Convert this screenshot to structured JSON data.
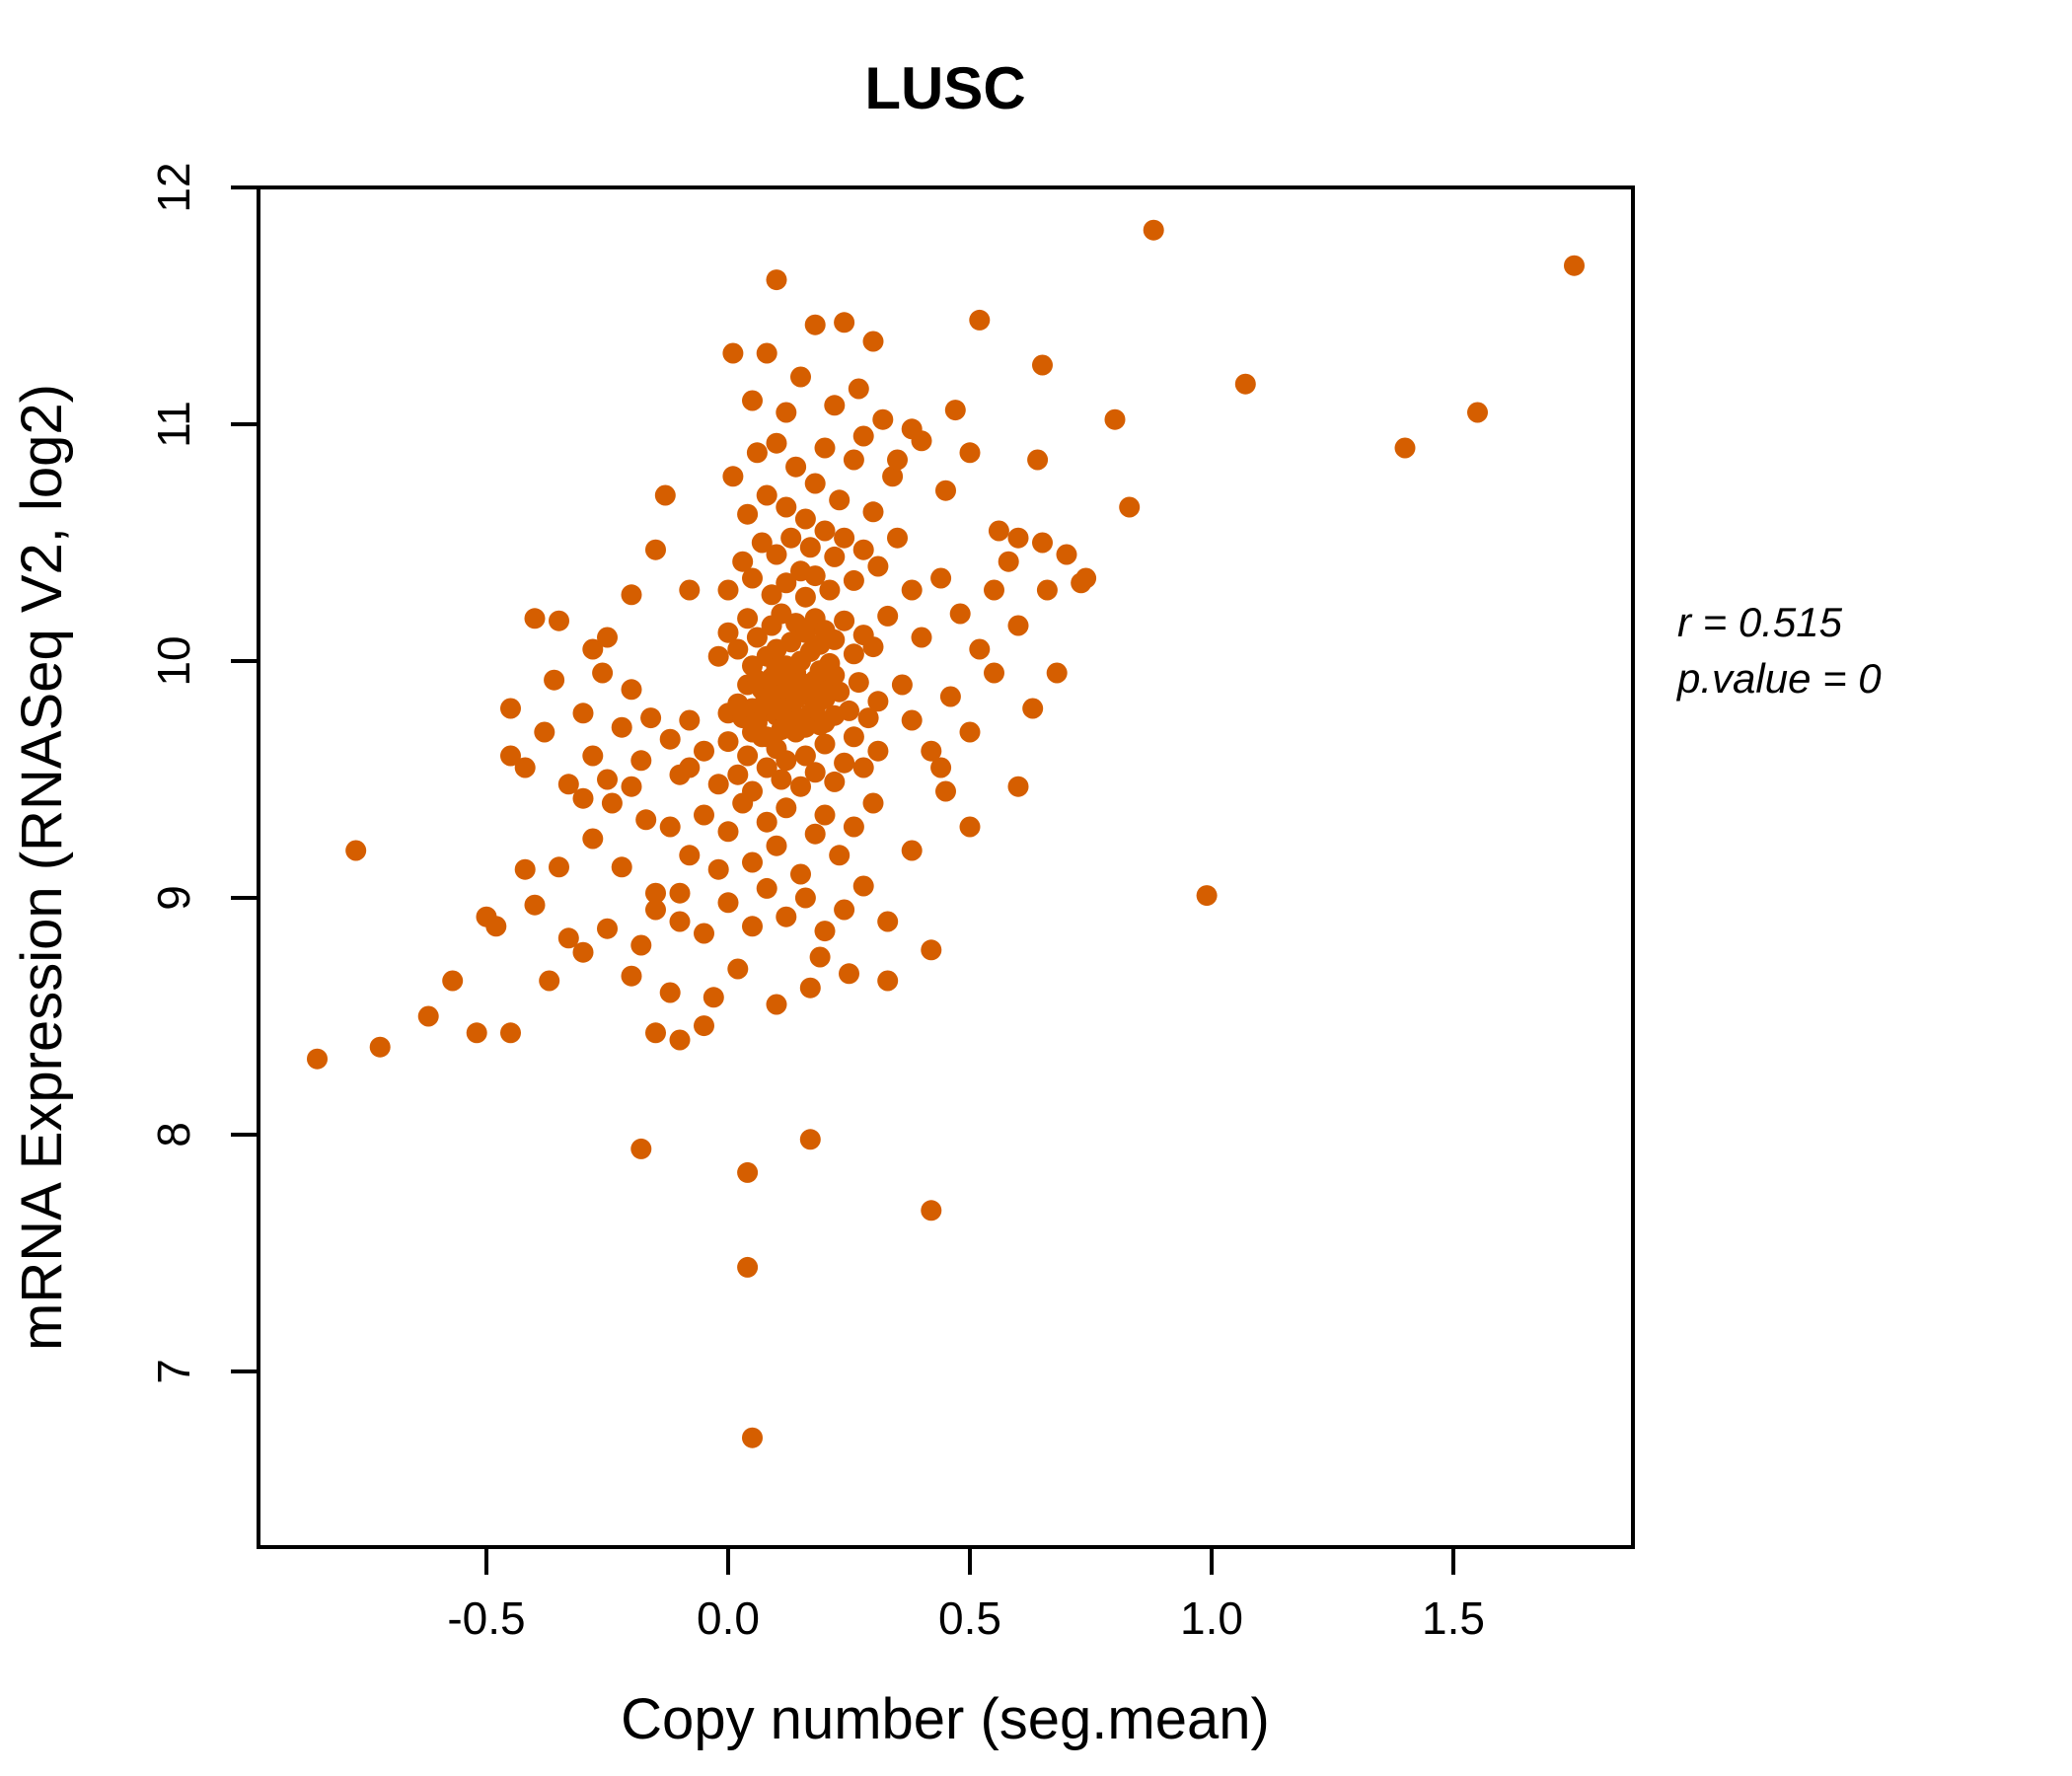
{
  "colors": {
    "accent": "#D55E00",
    "point": "#D55E00",
    "axis": "#000000"
  },
  "annotation": {
    "line1": "r = 0.515",
    "line2": "p.value = 0"
  },
  "chart_data": {
    "type": "scatter",
    "title": "LUSC",
    "xlabel": "Copy number (seg.mean)",
    "ylabel": "mRNA Expression (RNASeq V2, log2)",
    "xlim": [
      -0.97,
      1.87
    ],
    "ylim": [
      6.25,
      12
    ],
    "grid": false,
    "legend_position": "none",
    "x_ticks": [
      -0.5,
      0.0,
      0.5,
      1.0,
      1.5
    ],
    "x_tick_labels": [
      "-0.5",
      "0.0",
      "0.5",
      "1.0",
      "1.5"
    ],
    "y_ticks": [
      7,
      8,
      9,
      10,
      11,
      12
    ],
    "y_tick_labels": [
      "7",
      "8",
      "9",
      "10",
      "11",
      "12"
    ],
    "annotations": [
      "r = 0.515",
      "p.value = 0"
    ],
    "points": [
      [
        0.88,
        11.82
      ],
      [
        1.75,
        11.67
      ],
      [
        1.55,
        11.05
      ],
      [
        1.4,
        10.9
      ],
      [
        1.07,
        11.17
      ],
      [
        0.99,
        9.01
      ],
      [
        0.05,
        6.72
      ],
      [
        0.04,
        7.44
      ],
      [
        0.42,
        7.68
      ],
      [
        0.04,
        7.84
      ],
      [
        -0.18,
        7.94
      ],
      [
        0.17,
        7.98
      ],
      [
        -0.85,
        8.32
      ],
      [
        -0.72,
        8.37
      ],
      [
        -0.77,
        9.2
      ],
      [
        -0.62,
        8.5
      ],
      [
        -0.57,
        8.65
      ],
      [
        -0.45,
        8.43
      ],
      [
        -0.52,
        8.43
      ],
      [
        -0.37,
        8.65
      ],
      [
        -0.3,
        8.77
      ],
      [
        0.83,
        10.65
      ],
      [
        0.8,
        11.02
      ],
      [
        0.65,
        11.25
      ],
      [
        0.52,
        11.44
      ],
      [
        0.1,
        11.61
      ],
      [
        0.24,
        11.43
      ],
      [
        0.01,
        11.3
      ],
      [
        0.73,
        10.33
      ],
      [
        0.64,
        10.85
      ],
      [
        0.6,
        9.47
      ],
      [
        0.56,
        10.55
      ],
      [
        -0.45,
        9.6
      ],
      [
        -0.5,
        8.92
      ],
      [
        -0.48,
        8.88
      ],
      [
        -0.42,
        9.12
      ],
      [
        -0.4,
        8.97
      ],
      [
        -0.35,
        9.13
      ],
      [
        -0.33,
        8.83
      ],
      [
        -0.35,
        10.17
      ],
      [
        -0.28,
        10.05
      ],
      [
        -0.15,
        8.43
      ],
      [
        -0.1,
        8.4
      ],
      [
        -0.05,
        8.46
      ],
      [
        0.33,
        8.65
      ],
      [
        0.42,
        8.78
      ],
      [
        0.3,
        11.35
      ],
      [
        -0.45,
        9.8
      ],
      [
        -0.42,
        9.55
      ],
      [
        -0.4,
        10.18
      ],
      [
        -0.38,
        9.7
      ],
      [
        -0.36,
        9.92
      ],
      [
        -0.33,
        9.48
      ],
      [
        -0.3,
        9.78
      ],
      [
        -0.28,
        9.6
      ],
      [
        -0.26,
        9.95
      ],
      [
        -0.24,
        9.4
      ],
      [
        -0.22,
        9.72
      ],
      [
        -0.2,
        9.88
      ],
      [
        -0.18,
        9.58
      ],
      [
        -0.16,
        9.76
      ],
      [
        -0.25,
        10.1
      ],
      [
        -0.2,
        10.28
      ],
      [
        -0.3,
        9.42
      ],
      [
        -0.28,
        9.25
      ],
      [
        -0.25,
        9.5
      ],
      [
        -0.25,
        8.87
      ],
      [
        -0.22,
        9.13
      ],
      [
        -0.2,
        8.67
      ],
      [
        -0.2,
        9.47
      ],
      [
        -0.18,
        8.8
      ],
      [
        -0.17,
        9.33
      ],
      [
        -0.15,
        9.02
      ],
      [
        -0.15,
        10.47
      ],
      [
        -0.13,
        10.7
      ],
      [
        -0.12,
        9.67
      ],
      [
        -0.1,
        9.52
      ],
      [
        -0.1,
        8.9
      ],
      [
        -0.08,
        9.75
      ],
      [
        -0.08,
        10.3
      ],
      [
        0,
        9.78
      ],
      [
        0.02,
        9.82
      ],
      [
        0.03,
        9.76
      ],
      [
        0.04,
        9.9
      ],
      [
        0.05,
        9.8
      ],
      [
        0.06,
        9.74
      ],
      [
        0.07,
        9.88
      ],
      [
        0.08,
        9.79
      ],
      [
        0.09,
        9.93
      ],
      [
        0.1,
        9.77
      ],
      [
        0.1,
        9.85
      ],
      [
        0.11,
        9.71
      ],
      [
        0.12,
        9.9
      ],
      [
        0.13,
        9.8
      ],
      [
        0.14,
        9.95
      ],
      [
        0.15,
        9.75
      ],
      [
        0.16,
        9.86
      ],
      [
        0.17,
        9.78
      ],
      [
        0.18,
        9.92
      ],
      [
        0.19,
        9.73
      ],
      [
        0.2,
        9.84
      ],
      [
        0.21,
        9.95
      ],
      [
        0.22,
        9.77
      ],
      [
        0.23,
        9.87
      ],
      [
        0.25,
        9.79
      ],
      [
        0.27,
        9.91
      ],
      [
        0.29,
        9.76
      ],
      [
        0.31,
        9.83
      ],
      [
        -0.02,
        10.02
      ],
      [
        0,
        10.12
      ],
      [
        0.02,
        10.05
      ],
      [
        0.04,
        10.18
      ],
      [
        0.05,
        9.98
      ],
      [
        0.06,
        10.1
      ],
      [
        0.08,
        10.02
      ],
      [
        0.09,
        10.15
      ],
      [
        0.1,
        10.05
      ],
      [
        0.11,
        10.2
      ],
      [
        0.12,
        9.98
      ],
      [
        0.13,
        10.08
      ],
      [
        0.14,
        10.16
      ],
      [
        0.15,
        10
      ],
      [
        0.16,
        10.12
      ],
      [
        0.17,
        10.04
      ],
      [
        0.18,
        10.18
      ],
      [
        0.19,
        10.07
      ],
      [
        0.2,
        10.13
      ],
      [
        0.21,
        9.99
      ],
      [
        0.22,
        10.09
      ],
      [
        0.24,
        10.17
      ],
      [
        0.26,
        10.03
      ],
      [
        0.28,
        10.11
      ],
      [
        0.3,
        10.06
      ],
      [
        0.33,
        10.19
      ],
      [
        0,
        10.3
      ],
      [
        0.03,
        10.42
      ],
      [
        0.05,
        10.35
      ],
      [
        0.07,
        10.5
      ],
      [
        0.09,
        10.28
      ],
      [
        0.1,
        10.45
      ],
      [
        0.12,
        10.33
      ],
      [
        0.13,
        10.52
      ],
      [
        0.15,
        10.38
      ],
      [
        0.16,
        10.27
      ],
      [
        0.17,
        10.48
      ],
      [
        0.18,
        10.36
      ],
      [
        0.2,
        10.55
      ],
      [
        0.21,
        10.3
      ],
      [
        0.22,
        10.44
      ],
      [
        0.24,
        10.52
      ],
      [
        0.26,
        10.34
      ],
      [
        0.28,
        10.47
      ],
      [
        0.31,
        10.4
      ],
      [
        0.35,
        10.52
      ],
      [
        0.38,
        10.3
      ],
      [
        0.01,
        10.78
      ],
      [
        0.04,
        10.62
      ],
      [
        0.06,
        10.88
      ],
      [
        0.08,
        10.7
      ],
      [
        0.1,
        10.92
      ],
      [
        0.12,
        10.65
      ],
      [
        0.14,
        10.82
      ],
      [
        0.16,
        10.6
      ],
      [
        0.18,
        10.75
      ],
      [
        0.2,
        10.9
      ],
      [
        0.23,
        10.68
      ],
      [
        0.26,
        10.85
      ],
      [
        0.3,
        10.63
      ],
      [
        0.34,
        10.78
      ],
      [
        0.4,
        10.93
      ],
      [
        0.45,
        10.72
      ],
      [
        0.5,
        10.88
      ],
      [
        0.05,
        11.1
      ],
      [
        0.08,
        11.3
      ],
      [
        0.12,
        11.05
      ],
      [
        0.15,
        11.2
      ],
      [
        0.18,
        11.42
      ],
      [
        0.22,
        11.08
      ],
      [
        0.27,
        11.15
      ],
      [
        0.32,
        11.02
      ],
      [
        0.38,
        10.98
      ],
      [
        0.47,
        11.06
      ],
      [
        0.35,
        10.85
      ],
      [
        0.28,
        10.95
      ],
      [
        -0.08,
        9.55
      ],
      [
        -0.05,
        9.62
      ],
      [
        -0.02,
        9.48
      ],
      [
        0,
        9.66
      ],
      [
        0.02,
        9.52
      ],
      [
        0.04,
        9.6
      ],
      [
        0.05,
        9.45
      ],
      [
        0.07,
        9.68
      ],
      [
        0.08,
        9.55
      ],
      [
        0.1,
        9.63
      ],
      [
        0.11,
        9.5
      ],
      [
        0.12,
        9.58
      ],
      [
        0.14,
        9.7
      ],
      [
        0.15,
        9.47
      ],
      [
        0.16,
        9.6
      ],
      [
        0.18,
        9.53
      ],
      [
        0.2,
        9.65
      ],
      [
        0.22,
        9.49
      ],
      [
        0.24,
        9.57
      ],
      [
        0.26,
        9.68
      ],
      [
        0.28,
        9.55
      ],
      [
        0.31,
        9.62
      ],
      [
        -0.12,
        9.3
      ],
      [
        -0.08,
        9.18
      ],
      [
        -0.05,
        9.35
      ],
      [
        -0.02,
        9.12
      ],
      [
        0,
        9.28
      ],
      [
        0.03,
        9.4
      ],
      [
        0.05,
        9.15
      ],
      [
        0.08,
        9.32
      ],
      [
        0.1,
        9.22
      ],
      [
        0.12,
        9.38
      ],
      [
        0.15,
        9.1
      ],
      [
        0.18,
        9.27
      ],
      [
        0.2,
        9.35
      ],
      [
        0.23,
        9.18
      ],
      [
        0.26,
        9.3
      ],
      [
        0.3,
        9.4
      ],
      [
        -0.15,
        8.95
      ],
      [
        -0.1,
        9.02
      ],
      [
        -0.05,
        8.85
      ],
      [
        0,
        8.98
      ],
      [
        0.05,
        8.88
      ],
      [
        0.08,
        9.04
      ],
      [
        0.12,
        8.92
      ],
      [
        0.16,
        9
      ],
      [
        0.2,
        8.86
      ],
      [
        0.24,
        8.95
      ],
      [
        0.28,
        9.05
      ],
      [
        0.33,
        8.9
      ],
      [
        -0.12,
        8.6
      ],
      [
        -0.03,
        8.58
      ],
      [
        0.02,
        8.7
      ],
      [
        0.1,
        8.55
      ],
      [
        0.17,
        8.62
      ],
      [
        0.19,
        8.75
      ],
      [
        0.25,
        8.68
      ],
      [
        0.36,
        9.9
      ],
      [
        0.38,
        9.75
      ],
      [
        0.4,
        10.1
      ],
      [
        0.42,
        9.62
      ],
      [
        0.44,
        10.35
      ],
      [
        0.46,
        9.85
      ],
      [
        0.48,
        10.2
      ],
      [
        0.5,
        9.7
      ],
      [
        0.52,
        10.05
      ],
      [
        0.55,
        9.95
      ],
      [
        0.58,
        10.42
      ],
      [
        0.6,
        10.15
      ],
      [
        0.63,
        9.8
      ],
      [
        0.66,
        10.3
      ],
      [
        0.7,
        10.45
      ],
      [
        0.74,
        10.35
      ],
      [
        0.45,
        9.45
      ],
      [
        0.5,
        9.3
      ],
      [
        0.38,
        9.2
      ],
      [
        0.44,
        9.55
      ],
      [
        0.6,
        10.52
      ],
      [
        0.55,
        10.3
      ],
      [
        0.65,
        10.5
      ],
      [
        0.68,
        9.95
      ],
      [
        0.05,
        9.7
      ],
      [
        0.06,
        9.92
      ],
      [
        0.07,
        9.81
      ],
      [
        0.08,
        9.68
      ],
      [
        0.09,
        9.86
      ],
      [
        0.1,
        9.97
      ],
      [
        0.11,
        9.79
      ],
      [
        0.12,
        9.73
      ],
      [
        0.13,
        9.94
      ],
      [
        0.14,
        9.84
      ],
      [
        0.15,
        9.91
      ],
      [
        0.16,
        9.72
      ],
      [
        0.17,
        9.89
      ],
      [
        0.18,
        9.8
      ],
      [
        0.19,
        9.96
      ],
      [
        0.2,
        9.74
      ],
      [
        0.21,
        9.88
      ],
      [
        0.22,
        9.94
      ]
    ]
  }
}
